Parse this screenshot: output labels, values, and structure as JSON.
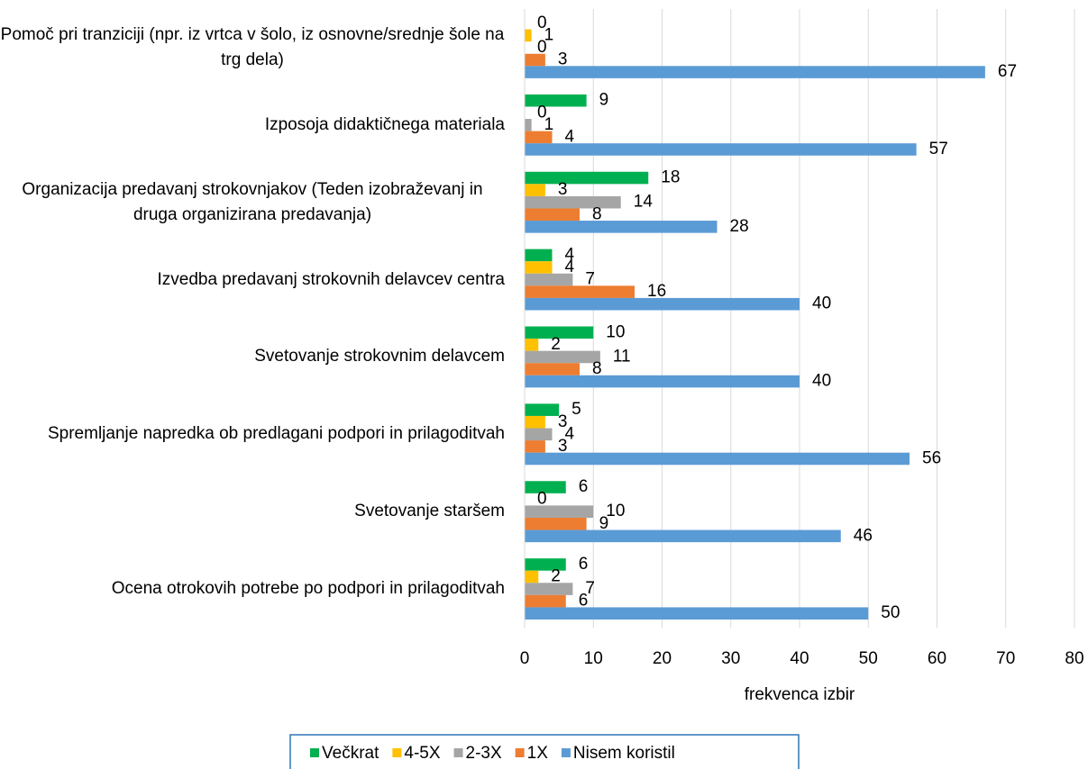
{
  "chart_data": {
    "type": "bar",
    "orientation": "horizontal",
    "x_label": "frekvenca izbir",
    "categories": [
      "Pomoč pri tranziciji (npr. iz vrtca v šolo, iz osnovne/srednje šole na trg dela)",
      "Izposoja didaktičnega materiala",
      "Organizacija predavanj strokovnjakov (Teden izobraževanj in druga organizirana predavanja)",
      "Izvedba predavanj strokovnih delavcev centra",
      "Svetovanje strokovnim delavcem",
      "Spremljanje napredka ob predlagani podpori in prilagoditvah",
      "Svetovanje staršem",
      "Ocena otrokovih potrebe po podpori in prilagoditvah"
    ],
    "series": [
      {
        "name": "Večkrat",
        "color": "#00b050",
        "values": [
          0,
          9,
          18,
          4,
          10,
          5,
          6,
          6
        ]
      },
      {
        "name": "4-5X",
        "color": "#ffc000",
        "values": [
          1,
          0,
          3,
          4,
          2,
          3,
          0,
          2
        ]
      },
      {
        "name": "2-3X",
        "color": "#a5a5a5",
        "values": [
          0,
          1,
          14,
          7,
          11,
          4,
          10,
          7
        ]
      },
      {
        "name": "1X",
        "color": "#ed7d31",
        "values": [
          3,
          4,
          8,
          16,
          8,
          3,
          9,
          6
        ]
      },
      {
        "name": "Nisem koristil",
        "color": "#5b9bd5",
        "values": [
          67,
          57,
          28,
          40,
          40,
          56,
          46,
          50
        ]
      }
    ],
    "xlim": [
      0,
      80
    ],
    "xticks": [
      0,
      10,
      20,
      30,
      40,
      50,
      60,
      70,
      80
    ],
    "grid": true,
    "legend": "bottom"
  }
}
